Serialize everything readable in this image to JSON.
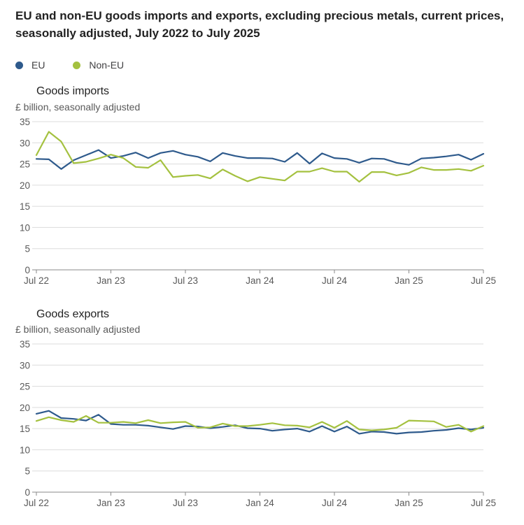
{
  "title": "EU and non-EU goods imports and exports, excluding precious metals, current prices, seasonally adjusted, July 2022 to July 2025",
  "legend": [
    {
      "name": "EU",
      "color": "#2e5a8c"
    },
    {
      "name": "Non-EU",
      "color": "#a4c13f"
    }
  ],
  "chart_data": [
    {
      "type": "line",
      "title": "Goods imports",
      "ylabel": "£ billion, seasonally adjusted",
      "ylim": [
        0,
        35
      ],
      "yticks": [
        0,
        5,
        10,
        15,
        20,
        25,
        30,
        35
      ],
      "xticks": [
        "Jul 22",
        "Jan 23",
        "Jul 23",
        "Jan 24",
        "Jul 24",
        "Jan 25",
        "Jul 25"
      ],
      "grid": true,
      "x": [
        "Jul 22",
        "Aug 22",
        "Sep 22",
        "Oct 22",
        "Nov 22",
        "Dec 22",
        "Jan 23",
        "Feb 23",
        "Mar 23",
        "Apr 23",
        "May 23",
        "Jun 23",
        "Jul 23",
        "Aug 23",
        "Sep 23",
        "Oct 23",
        "Nov 23",
        "Dec 23",
        "Jan 24",
        "Feb 24",
        "Mar 24",
        "Apr 24",
        "May 24",
        "Jun 24",
        "Jul 24",
        "Aug 24",
        "Sep 24",
        "Oct 24",
        "Nov 24",
        "Dec 24",
        "Jan 25",
        "Feb 25",
        "Mar 25",
        "Apr 25",
        "May 25",
        "Jun 25",
        "Jul 25"
      ],
      "series": [
        {
          "name": "EU",
          "color": "#2e5a8c",
          "values": [
            26.2,
            26.1,
            23.8,
            25.9,
            27.1,
            28.3,
            26.4,
            26.9,
            27.7,
            26.4,
            27.6,
            28.1,
            27.2,
            26.7,
            25.6,
            27.6,
            26.9,
            26.4,
            26.4,
            26.3,
            25.5,
            27.6,
            25.1,
            27.5,
            26.4,
            26.2,
            25.3,
            26.3,
            26.2,
            25.3,
            24.8,
            26.3,
            26.5,
            26.8,
            27.2,
            26.0,
            27.4
          ]
        },
        {
          "name": "Non-EU",
          "color": "#a4c13f",
          "values": [
            27.1,
            32.6,
            30.3,
            25.2,
            25.5,
            26.3,
            27.2,
            26.4,
            24.3,
            24.1,
            25.9,
            21.9,
            22.2,
            22.4,
            21.6,
            23.7,
            22.2,
            20.9,
            21.9,
            21.5,
            21.1,
            23.2,
            23.2,
            24.0,
            23.2,
            23.2,
            20.8,
            23.1,
            23.1,
            22.3,
            22.9,
            24.2,
            23.6,
            23.6,
            23.8,
            23.4,
            24.6
          ]
        }
      ]
    },
    {
      "type": "line",
      "title": "Goods exports",
      "ylabel": "£ billion, seasonally adjusted",
      "ylim": [
        0,
        35
      ],
      "yticks": [
        0,
        5,
        10,
        15,
        20,
        25,
        30,
        35
      ],
      "xticks": [
        "Jul 22",
        "Jan 23",
        "Jul 23",
        "Jan 24",
        "Jul 24",
        "Jan 25",
        "Jul 25"
      ],
      "grid": true,
      "x": [
        "Jul 22",
        "Aug 22",
        "Sep 22",
        "Oct 22",
        "Nov 22",
        "Dec 22",
        "Jan 23",
        "Feb 23",
        "Mar 23",
        "Apr 23",
        "May 23",
        "Jun 23",
        "Jul 23",
        "Aug 23",
        "Sep 23",
        "Oct 23",
        "Nov 23",
        "Dec 23",
        "Jan 24",
        "Feb 24",
        "Mar 24",
        "Apr 24",
        "May 24",
        "Jun 24",
        "Jul 24",
        "Aug 24",
        "Sep 24",
        "Oct 24",
        "Nov 24",
        "Dec 24",
        "Jan 25",
        "Feb 25",
        "Mar 25",
        "Apr 25",
        "May 25",
        "Jun 25",
        "Jul 25"
      ],
      "series": [
        {
          "name": "EU",
          "color": "#2e5a8c",
          "values": [
            18.5,
            19.2,
            17.5,
            17.3,
            16.9,
            18.3,
            16.1,
            15.9,
            15.9,
            15.7,
            15.3,
            14.9,
            15.6,
            15.5,
            15.1,
            15.4,
            15.8,
            15.1,
            15.0,
            14.5,
            14.8,
            15.0,
            14.3,
            15.6,
            14.3,
            15.5,
            13.8,
            14.3,
            14.2,
            13.8,
            14.1,
            14.2,
            14.5,
            14.7,
            15.1,
            14.8,
            15.2
          ]
        },
        {
          "name": "Non-EU",
          "color": "#a4c13f",
          "values": [
            16.8,
            17.7,
            17.0,
            16.6,
            18.0,
            16.4,
            16.4,
            16.6,
            16.3,
            17.0,
            16.3,
            16.5,
            16.6,
            15.2,
            15.3,
            16.2,
            15.6,
            15.6,
            15.9,
            16.3,
            15.8,
            15.7,
            15.3,
            16.6,
            15.2,
            16.8,
            14.8,
            14.6,
            14.8,
            15.2,
            16.9,
            16.8,
            16.7,
            15.4,
            15.9,
            14.3,
            15.6
          ]
        }
      ]
    }
  ]
}
